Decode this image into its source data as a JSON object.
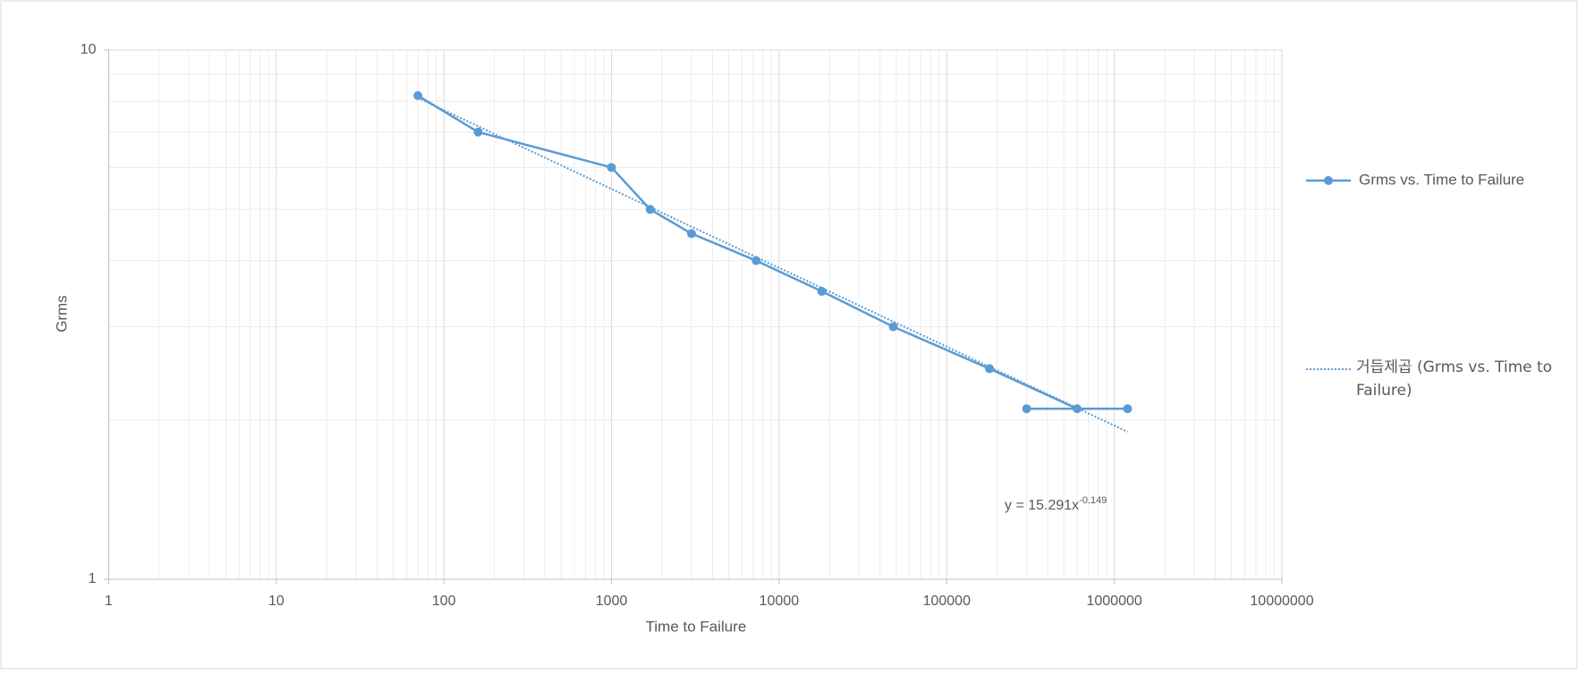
{
  "chart_data": {
    "type": "scatter-line",
    "x_label": "Time to Failure",
    "y_label": "Grms",
    "series": [
      {
        "name": "Grms vs. Time to Failure",
        "color": "#5b9bd5",
        "x": [
          70,
          160,
          1000,
          1700,
          3000,
          7300,
          18000,
          48000,
          180000,
          600000,
          300000,
          1200000
        ],
        "values": [
          8.2,
          7,
          6,
          5,
          4.5,
          4,
          3.5,
          3,
          2.5,
          2.1,
          2.1,
          2.1
        ]
      }
    ],
    "trendline": {
      "name": "거듭제곱 (Grms vs. Time to Failure)",
      "type": "power",
      "a": 15.291,
      "b": -0.149,
      "equation": "y = 15.291x",
      "equation_exponent": "-0.149",
      "style": "dotted"
    },
    "xscale": "log",
    "yscale": "log",
    "xlim": [
      1,
      10000000
    ],
    "xticks": [
      1,
      10,
      100,
      1000,
      10000,
      100000,
      1000000,
      10000000
    ],
    "ylim": [
      1,
      10
    ],
    "yticks": [
      1,
      10
    ],
    "grid": true,
    "minor_grid": true,
    "legend": "right"
  }
}
